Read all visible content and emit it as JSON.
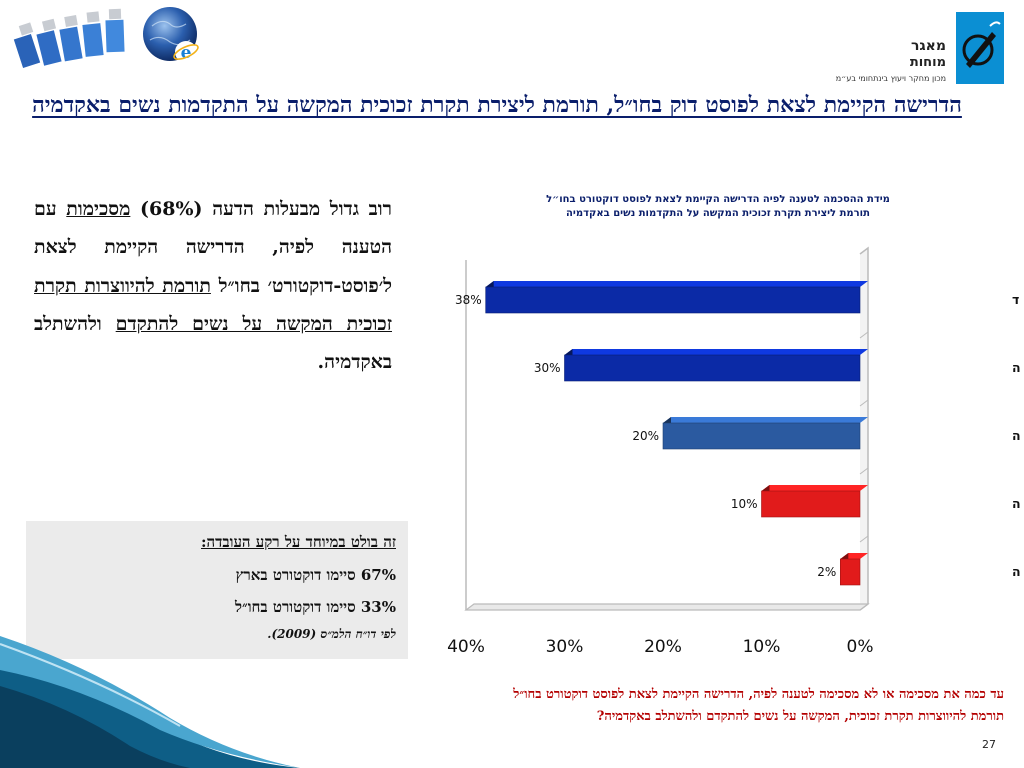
{
  "title": "הדרישה הקיימת לצאת לפוסט דוק בחו״ל, תורמת ליצירת תקרת זכוכית המקשה על התקדמות נשים באקדמיה",
  "logo": {
    "name_line1": "מאגר",
    "name_line2": "מוחות",
    "subtitle": "מכון מחקר ויעוץ בינתחומי בע״מ"
  },
  "main_text": {
    "part1": "רוב גדול מבעלות הדעה (68%) ",
    "part2_underlined": "מסכימות",
    "part3": " עם הטענה לפיה, הדרישה הקיימת לצאת ל׳פוסט-דוקטורט׳ בחו״ל ",
    "part4_underlined": "תורמת להיווצרות תקרת זכוכית המקשה על נשים להתקדם",
    "part5": " ולהשתלב באקדמיה."
  },
  "info_box": {
    "title": "זה בולט במיוחד על רקע העובדה:",
    "line1": "67% סיימו דוקטורט בארץ",
    "line2": "33% סיימו דוקטורט בחו״ל",
    "source": "לפי דו״ח הלמ״ס (2009)."
  },
  "question": {
    "line1": "עד כמה את מסכימה או לא מסכימה לטענה לפיה, הדרישה הקיימת לצאת לפוסט דוקטורט בחו״ל",
    "line2": "תורמת להיווצרות תקרת זכוכית, המקשה על נשים להתקדם ולהשתלב באקדמיה?"
  },
  "page_number": "27",
  "chart_data": {
    "type": "bar",
    "orientation": "horizontal",
    "title_line1": "מידת ההסכמה לטענה לפיה הדרישה הקיימת לצאת לפוסט דוקטורט בחו״ל",
    "title_line2": "תורמת ליצירת תקרת זכוכית המקשה על התקדמות נשים באקדמיה",
    "categories": [
      "מסכימה מאד",
      "מסכימה",
      "ככה ככה",
      "לא מסכימה",
      "מאד לא מסכימה"
    ],
    "values": [
      38,
      30,
      20,
      10,
      2
    ],
    "value_labels": [
      "38%",
      "30%",
      "20%",
      "10%",
      "2%"
    ],
    "colors": [
      "#0b2aa6",
      "#0b2aa6",
      "#2b5aa0",
      "#e11b1b",
      "#e11b1b"
    ],
    "x_ticks": [
      "40%",
      "30%",
      "20%",
      "10%",
      "0%"
    ],
    "xlim": [
      0,
      40
    ],
    "x_reversed": true,
    "grid": false,
    "legend": "none"
  }
}
